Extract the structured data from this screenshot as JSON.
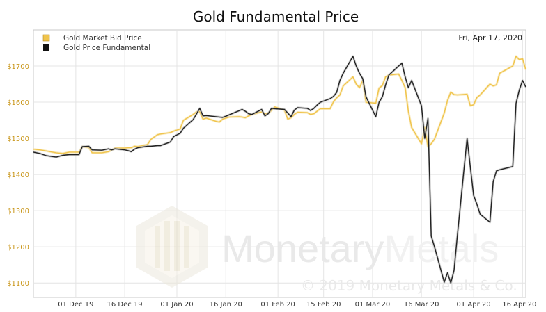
{
  "chart_data": {
    "type": "line",
    "title": "Gold Fundamental Price",
    "date_label": "Fri, Apr 17, 2020",
    "watermark": {
      "brand_a": "Monetary",
      "brand_b": "Metals",
      "copyright": "© 2019 Monetary Metals & Co."
    },
    "x_ticks": [
      "01 Dec 19",
      "16 Dec 19",
      "01 Jan 20",
      "16 Jan 20",
      "01 Feb 20",
      "15 Feb 20",
      "01 Mar 20",
      "16 Mar 20",
      "01 Apr 20",
      "16 Apr 20"
    ],
    "x_range": [
      "2019-11-18",
      "2020-04-17"
    ],
    "y_ticks": [
      "$1100",
      "$1200",
      "$1300",
      "$1400",
      "$1500",
      "$1600",
      "$1700"
    ],
    "ylim": [
      1060,
      1800
    ],
    "grid": true,
    "legend_position": "top-left",
    "series": [
      {
        "name": "Gold Market Bid Price",
        "color": "#f0c44c",
        "points": [
          [
            "2019-11-18",
            1470
          ],
          [
            "2019-11-20",
            1468
          ],
          [
            "2019-11-22",
            1465
          ],
          [
            "2019-11-25",
            1460
          ],
          [
            "2019-11-27",
            1458
          ],
          [
            "2019-11-29",
            1462
          ],
          [
            "2019-12-02",
            1462
          ],
          [
            "2019-12-03",
            1477
          ],
          [
            "2019-12-05",
            1475
          ],
          [
            "2019-12-06",
            1460
          ],
          [
            "2019-12-09",
            1460
          ],
          [
            "2019-12-11",
            1463
          ],
          [
            "2019-12-12",
            1467
          ],
          [
            "2019-12-13",
            1473
          ],
          [
            "2019-12-16",
            1473
          ],
          [
            "2019-12-17",
            1474
          ],
          [
            "2019-12-18",
            1474
          ],
          [
            "2019-12-19",
            1478
          ],
          [
            "2019-12-20",
            1477
          ],
          [
            "2019-12-23",
            1483
          ],
          [
            "2019-12-24",
            1497
          ],
          [
            "2019-12-26",
            1510
          ],
          [
            "2019-12-27",
            1512
          ],
          [
            "2019-12-30",
            1516
          ],
          [
            "2019-12-31",
            1520
          ],
          [
            "2020-01-02",
            1526
          ],
          [
            "2020-01-03",
            1550
          ],
          [
            "2020-01-06",
            1566
          ],
          [
            "2020-01-07",
            1573
          ],
          [
            "2020-01-08",
            1574
          ],
          [
            "2020-01-09",
            1553
          ],
          [
            "2020-01-10",
            1556
          ],
          [
            "2020-01-13",
            1547
          ],
          [
            "2020-01-14",
            1545
          ],
          [
            "2020-01-15",
            1553
          ],
          [
            "2020-01-16",
            1556
          ],
          [
            "2020-01-17",
            1559
          ],
          [
            "2020-01-20",
            1560
          ],
          [
            "2020-01-21",
            1559
          ],
          [
            "2020-01-22",
            1557
          ],
          [
            "2020-01-23",
            1562
          ],
          [
            "2020-01-24",
            1566
          ],
          [
            "2020-01-27",
            1573
          ],
          [
            "2020-01-28",
            1567
          ],
          [
            "2020-01-29",
            1570
          ],
          [
            "2020-01-30",
            1577
          ],
          [
            "2020-01-31",
            1587
          ],
          [
            "2020-02-03",
            1578
          ],
          [
            "2020-02-04",
            1553
          ],
          [
            "2020-02-05",
            1557
          ],
          [
            "2020-02-06",
            1566
          ],
          [
            "2020-02-07",
            1572
          ],
          [
            "2020-02-10",
            1571
          ],
          [
            "2020-02-11",
            1566
          ],
          [
            "2020-02-12",
            1568
          ],
          [
            "2020-02-13",
            1575
          ],
          [
            "2020-02-14",
            1582
          ],
          [
            "2020-02-17",
            1582
          ],
          [
            "2020-02-18",
            1601
          ],
          [
            "2020-02-19",
            1612
          ],
          [
            "2020-02-20",
            1620
          ],
          [
            "2020-02-21",
            1645
          ],
          [
            "2020-02-24",
            1670
          ],
          [
            "2020-02-25",
            1650
          ],
          [
            "2020-02-26",
            1640
          ],
          [
            "2020-02-27",
            1660
          ],
          [
            "2020-02-28",
            1600
          ],
          [
            "2020-03-02",
            1597
          ],
          [
            "2020-03-03",
            1639
          ],
          [
            "2020-03-04",
            1646
          ],
          [
            "2020-03-05",
            1670
          ],
          [
            "2020-03-06",
            1675
          ],
          [
            "2020-03-09",
            1678
          ],
          [
            "2020-03-10",
            1660
          ],
          [
            "2020-03-11",
            1640
          ],
          [
            "2020-03-12",
            1575
          ],
          [
            "2020-03-13",
            1530
          ],
          [
            "2020-03-16",
            1485
          ],
          [
            "2020-03-17",
            1530
          ],
          [
            "2020-03-18",
            1477
          ],
          [
            "2020-03-19",
            1485
          ],
          [
            "2020-03-20",
            1498
          ],
          [
            "2020-03-23",
            1570
          ],
          [
            "2020-03-24",
            1605
          ],
          [
            "2020-03-25",
            1628
          ],
          [
            "2020-03-26",
            1621
          ],
          [
            "2020-03-27",
            1620
          ],
          [
            "2020-03-30",
            1622
          ],
          [
            "2020-03-31",
            1590
          ],
          [
            "2020-04-01",
            1593
          ],
          [
            "2020-04-02",
            1613
          ],
          [
            "2020-04-03",
            1620
          ],
          [
            "2020-04-06",
            1650
          ],
          [
            "2020-04-07",
            1645
          ],
          [
            "2020-04-08",
            1648
          ],
          [
            "2020-04-09",
            1680
          ],
          [
            "2020-04-13",
            1700
          ],
          [
            "2020-04-14",
            1727
          ],
          [
            "2020-04-15",
            1718
          ],
          [
            "2020-04-16",
            1720
          ],
          [
            "2020-04-17",
            1690
          ]
        ]
      },
      {
        "name": "Gold Price Fundamental",
        "color": "#222222",
        "points": [
          [
            "2019-11-18",
            1462
          ],
          [
            "2019-11-20",
            1458
          ],
          [
            "2019-11-22",
            1452
          ],
          [
            "2019-11-25",
            1448
          ],
          [
            "2019-11-27",
            1453
          ],
          [
            "2019-11-29",
            1455
          ],
          [
            "2019-12-02",
            1455
          ],
          [
            "2019-12-03",
            1477
          ],
          [
            "2019-12-05",
            1478
          ],
          [
            "2019-12-06",
            1468
          ],
          [
            "2019-12-09",
            1467
          ],
          [
            "2019-12-11",
            1471
          ],
          [
            "2019-12-12",
            1468
          ],
          [
            "2019-12-13",
            1471
          ],
          [
            "2019-12-16",
            1468
          ],
          [
            "2019-12-17",
            1466
          ],
          [
            "2019-12-18",
            1463
          ],
          [
            "2019-12-19",
            1470
          ],
          [
            "2019-12-20",
            1474
          ],
          [
            "2019-12-23",
            1478
          ],
          [
            "2019-12-24",
            1478
          ],
          [
            "2019-12-26",
            1480
          ],
          [
            "2019-12-27",
            1480
          ],
          [
            "2019-12-30",
            1490
          ],
          [
            "2019-12-31",
            1505
          ],
          [
            "2020-01-02",
            1514
          ],
          [
            "2020-01-03",
            1528
          ],
          [
            "2020-01-06",
            1552
          ],
          [
            "2020-01-07",
            1567
          ],
          [
            "2020-01-08",
            1583
          ],
          [
            "2020-01-09",
            1562
          ],
          [
            "2020-01-10",
            1563
          ],
          [
            "2020-01-13",
            1560
          ],
          [
            "2020-01-14",
            1559
          ],
          [
            "2020-01-15",
            1558
          ],
          [
            "2020-01-16",
            1561
          ],
          [
            "2020-01-17",
            1565
          ],
          [
            "2020-01-20",
            1576
          ],
          [
            "2020-01-21",
            1580
          ],
          [
            "2020-01-22",
            1575
          ],
          [
            "2020-01-23",
            1568
          ],
          [
            "2020-01-24",
            1566
          ],
          [
            "2020-01-27",
            1580
          ],
          [
            "2020-01-28",
            1562
          ],
          [
            "2020-01-29",
            1568
          ],
          [
            "2020-01-30",
            1583
          ],
          [
            "2020-01-31",
            1582
          ],
          [
            "2020-02-03",
            1580
          ],
          [
            "2020-02-04",
            1570
          ],
          [
            "2020-02-05",
            1560
          ],
          [
            "2020-02-06",
            1578
          ],
          [
            "2020-02-07",
            1585
          ],
          [
            "2020-02-10",
            1583
          ],
          [
            "2020-02-11",
            1577
          ],
          [
            "2020-02-12",
            1583
          ],
          [
            "2020-02-13",
            1592
          ],
          [
            "2020-02-14",
            1600
          ],
          [
            "2020-02-17",
            1610
          ],
          [
            "2020-02-18",
            1616
          ],
          [
            "2020-02-19",
            1627
          ],
          [
            "2020-02-20",
            1660
          ],
          [
            "2020-02-21",
            1680
          ],
          [
            "2020-02-24",
            1727
          ],
          [
            "2020-02-25",
            1700
          ],
          [
            "2020-02-26",
            1680
          ],
          [
            "2020-02-27",
            1665
          ],
          [
            "2020-02-28",
            1615
          ],
          [
            "2020-03-02",
            1560
          ],
          [
            "2020-03-03",
            1600
          ],
          [
            "2020-03-04",
            1615
          ],
          [
            "2020-03-05",
            1648
          ],
          [
            "2020-03-06",
            1675
          ],
          [
            "2020-03-09",
            1700
          ],
          [
            "2020-03-10",
            1708
          ],
          [
            "2020-03-11",
            1670
          ],
          [
            "2020-03-12",
            1640
          ],
          [
            "2020-03-13",
            1660
          ],
          [
            "2020-03-16",
            1590
          ],
          [
            "2020-03-17",
            1500
          ],
          [
            "2020-03-18",
            1555
          ],
          [
            "2020-03-19",
            1230
          ],
          [
            "2020-03-20",
            1200
          ],
          [
            "2020-03-23",
            1102
          ],
          [
            "2020-03-24",
            1128
          ],
          [
            "2020-03-25",
            1100
          ],
          [
            "2020-03-26",
            1135
          ],
          [
            "2020-03-27",
            1230
          ],
          [
            "2020-03-30",
            1500
          ],
          [
            "2020-03-31",
            1420
          ],
          [
            "2020-04-01",
            1342
          ],
          [
            "2020-04-02",
            1318
          ],
          [
            "2020-04-03",
            1290
          ],
          [
            "2020-04-06",
            1268
          ],
          [
            "2020-04-07",
            1380
          ],
          [
            "2020-04-08",
            1410
          ],
          [
            "2020-04-09",
            1413
          ],
          [
            "2020-04-13",
            1422
          ],
          [
            "2020-04-14",
            1597
          ],
          [
            "2020-04-15",
            1633
          ],
          [
            "2020-04-16",
            1660
          ],
          [
            "2020-04-17",
            1642
          ]
        ]
      }
    ]
  }
}
